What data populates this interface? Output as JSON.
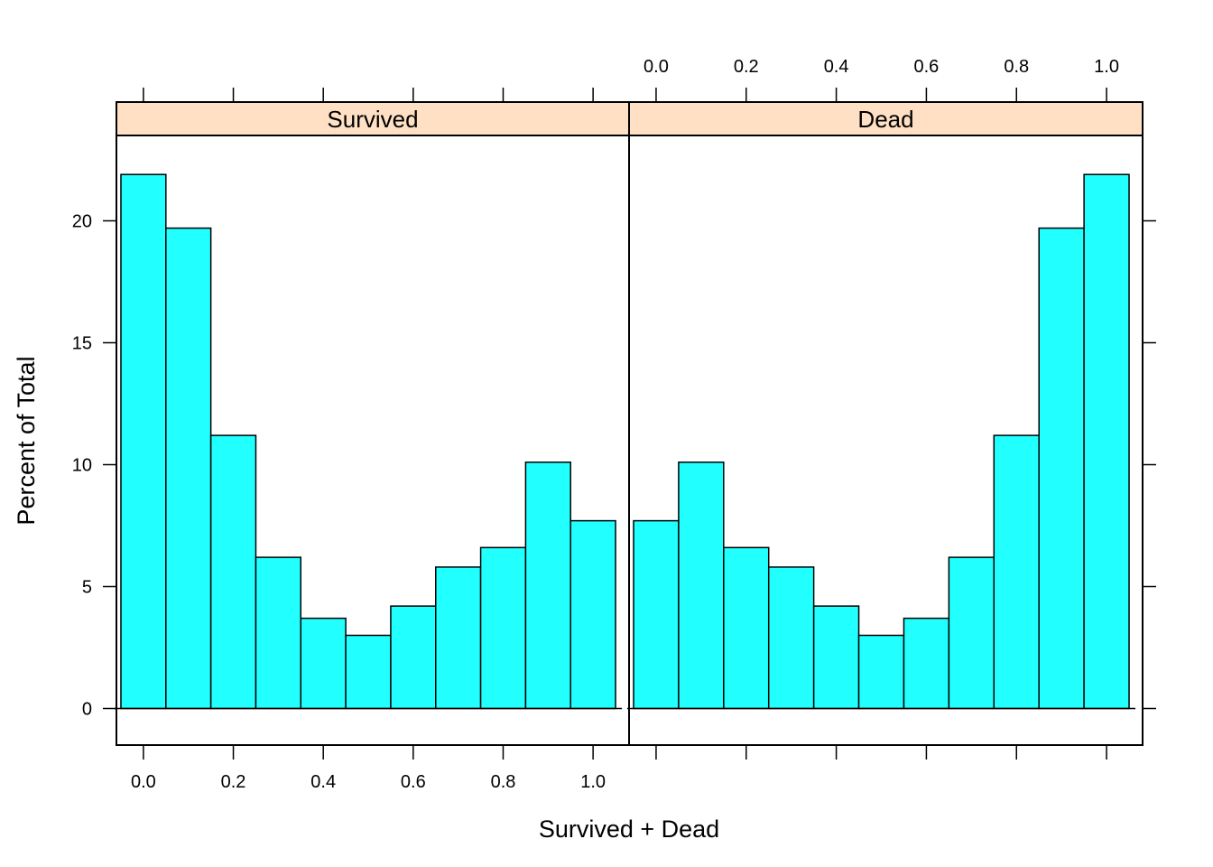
{
  "chart_data": {
    "type": "bar",
    "xlabel": "Survived + Dead",
    "ylabel": "Percent of Total",
    "xlim": [
      -0.06,
      1.08
    ],
    "ylim": [
      -1.5,
      23.5
    ],
    "x_ticks": [
      "0.0",
      "0.2",
      "0.4",
      "0.6",
      "0.8",
      "1.0"
    ],
    "x_tick_values": [
      0,
      0.2,
      0.4,
      0.6,
      0.8,
      1.0
    ],
    "y_ticks": [
      "0",
      "5",
      "10",
      "15",
      "20"
    ],
    "y_tick_values": [
      0,
      5,
      10,
      15,
      20
    ],
    "bin_edges": [
      -0.05,
      0.05,
      0.15,
      0.25,
      0.35,
      0.45,
      0.55,
      0.65,
      0.75,
      0.85,
      0.95,
      1.05
    ],
    "bar_color": "#22ffff",
    "strip_color": "#ffe0c4",
    "panels": [
      {
        "strip": "Survived",
        "values": [
          21.9,
          19.7,
          11.2,
          6.2,
          3.7,
          3.0,
          4.2,
          5.8,
          6.6,
          10.1,
          7.7
        ]
      },
      {
        "strip": "Dead",
        "values": [
          7.7,
          10.1,
          6.6,
          5.8,
          4.2,
          3.0,
          3.7,
          6.2,
          11.2,
          19.7,
          21.9
        ]
      }
    ]
  }
}
